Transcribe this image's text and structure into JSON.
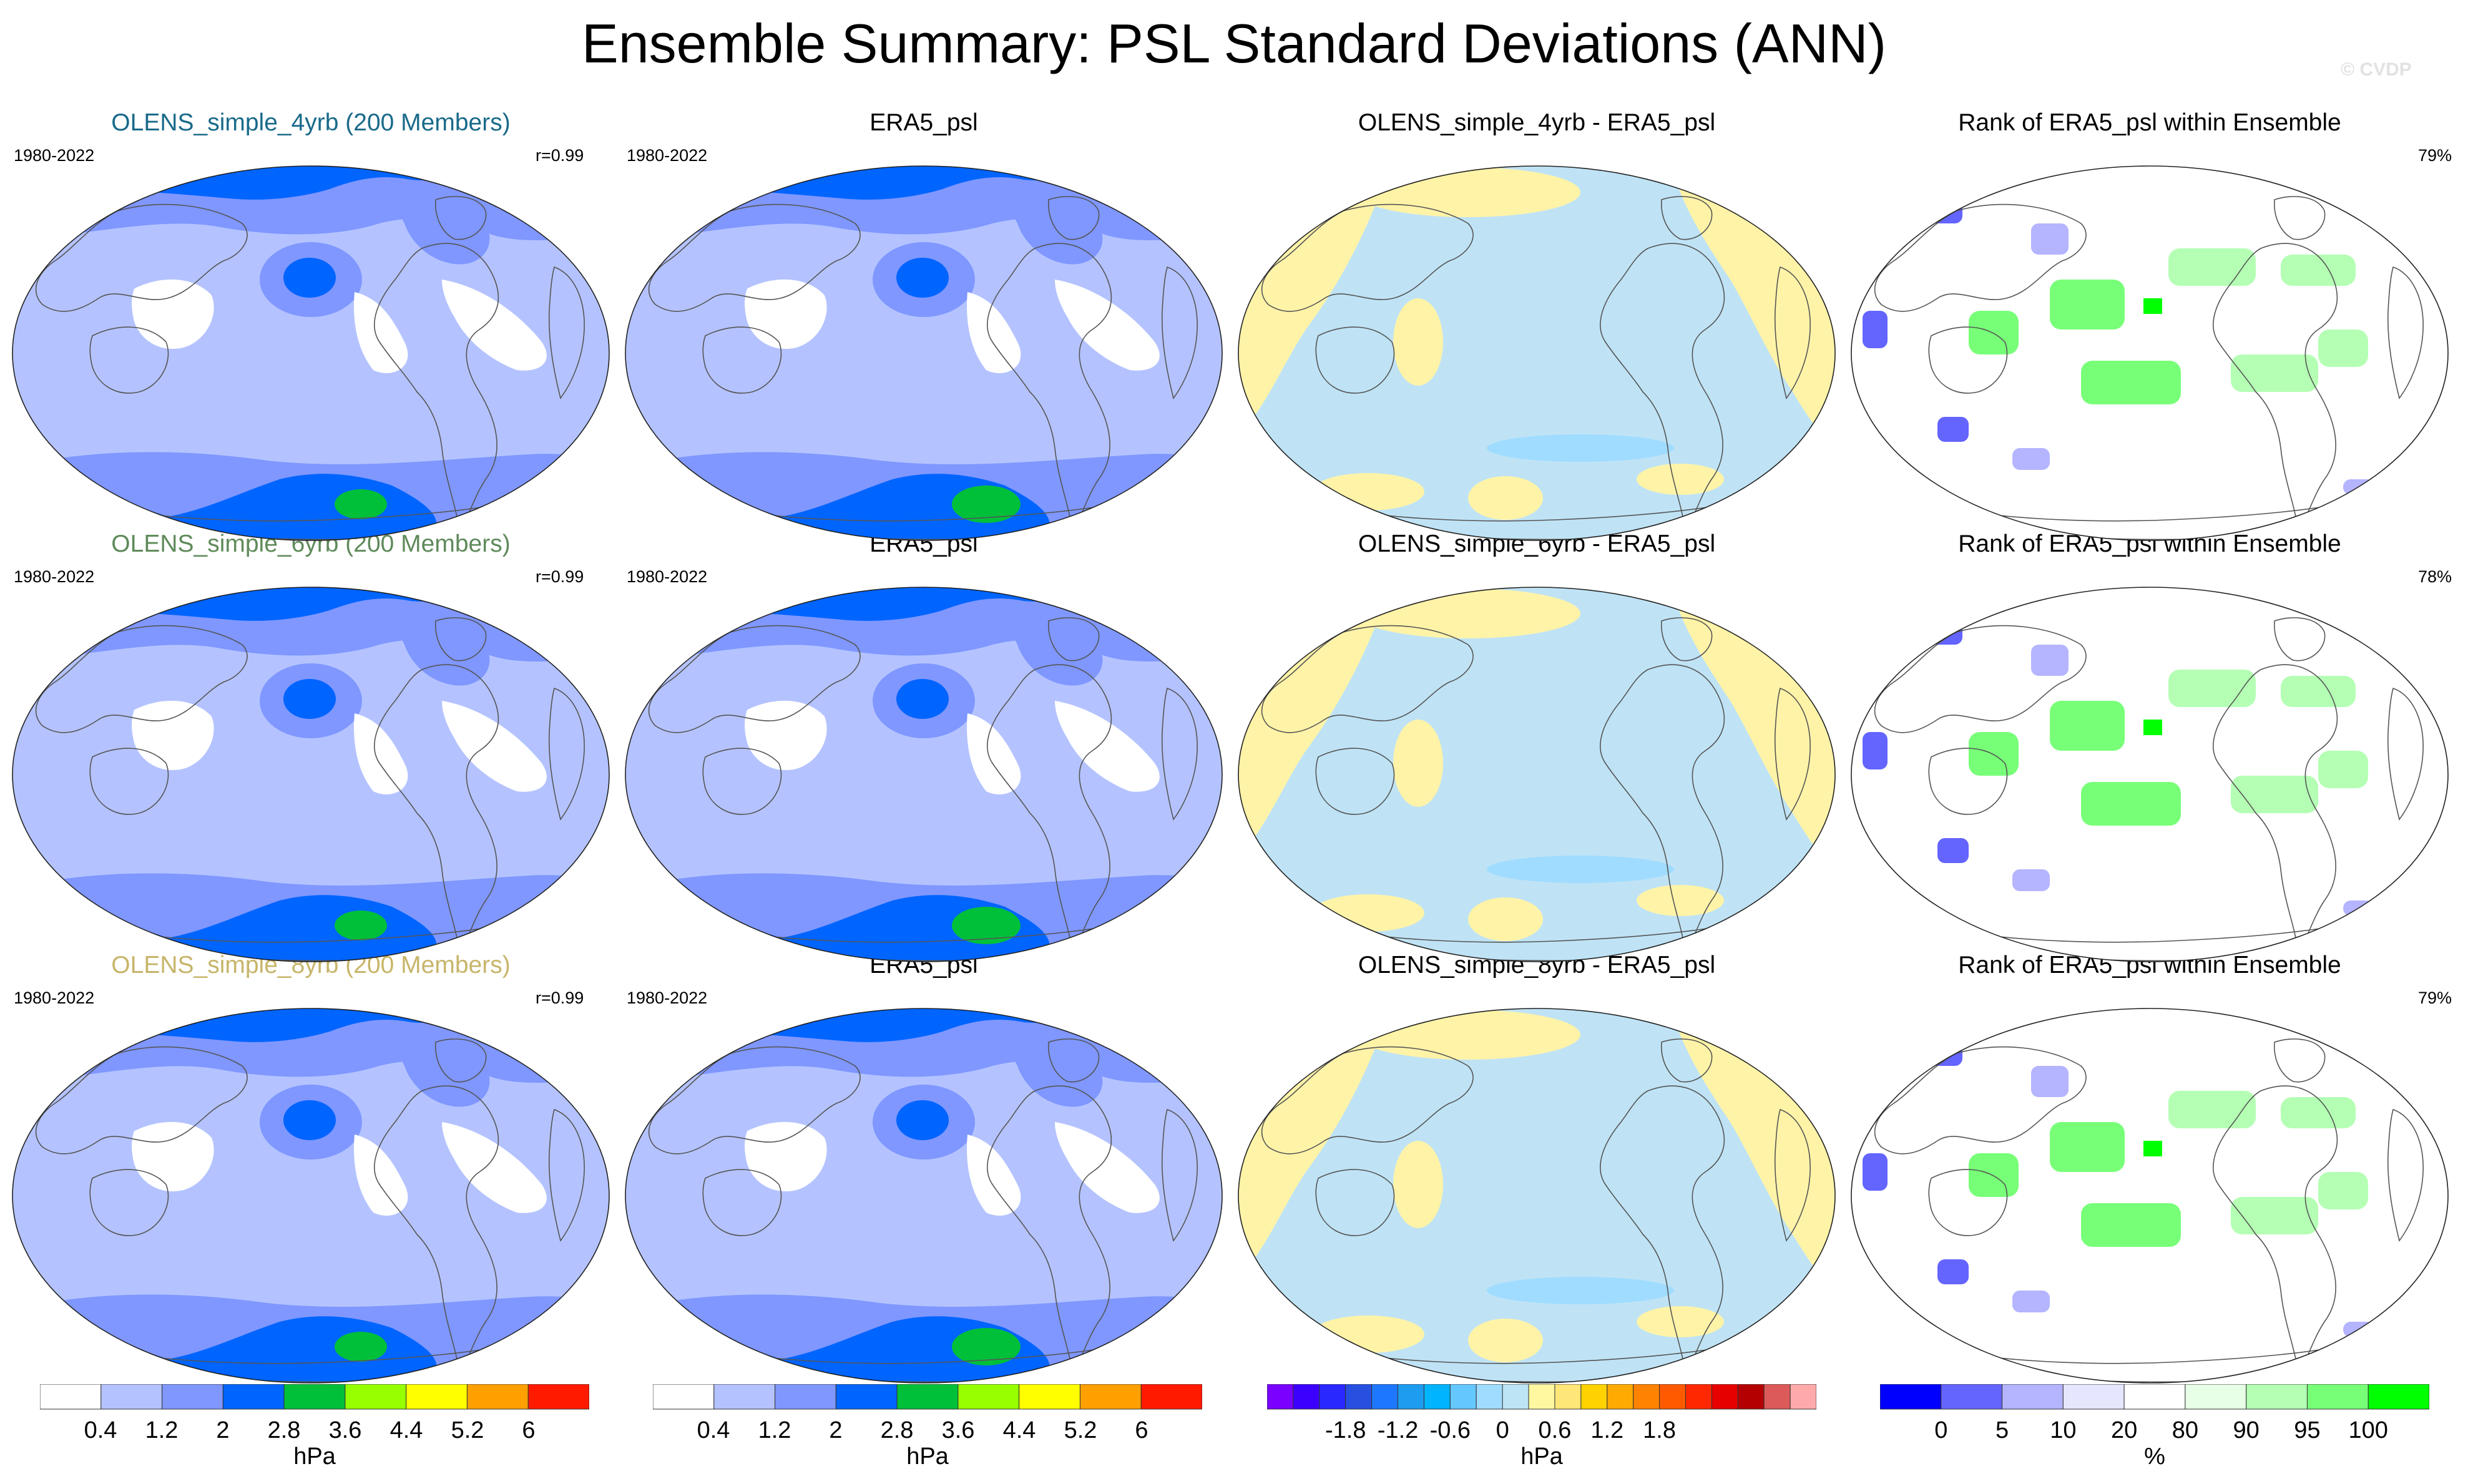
{
  "title": "Ensemble Summary: PSL Standard Deviations (ANN)",
  "watermark": "© CVDP",
  "colors": {
    "std": [
      "#ffffff",
      "#b4c3ff",
      "#7f97ff",
      "#0064ff",
      "#00c03a",
      "#96ff00",
      "#ffff00",
      "#ffa000",
      "#ff1a00"
    ],
    "diff": [
      "#7a00ff",
      "#3c00ff",
      "#2828ff",
      "#2850e0",
      "#1e78ff",
      "#1e9cf0",
      "#00b4ff",
      "#64c8ff",
      "#a0dcff",
      "#bce4f4",
      "#fff8a0",
      "#ffe678",
      "#ffd200",
      "#ffaa00",
      "#ff8200",
      "#ff5a00",
      "#ff2800",
      "#e60000",
      "#b40000",
      "#dc5a5a",
      "#ffaaaa"
    ],
    "rank": [
      "#0000ff",
      "#6464ff",
      "#b4b4ff",
      "#e6e6ff",
      "#ffffff",
      "#e6ffe6",
      "#b4ffb4",
      "#78ff78",
      "#00ff00"
    ],
    "ocean_diff": "#bfe3f5",
    "land_diff": "#fff3a8"
  },
  "rows": [
    {
      "ensemble_title": "OLENS_simple_4yrb (200 Members)",
      "ensemble_color": "#1a6a8a",
      "years": "1980-2022",
      "r": "r=0.99",
      "obs_title": "ERA5_psl",
      "obs_years": "1980-2022",
      "diff_title": "OLENS_simple_4yrb - ERA5_psl",
      "rank_title": "Rank of ERA5_psl within Ensemble",
      "rank_pct": "79%"
    },
    {
      "ensemble_title": "OLENS_simple_6yrb (200 Members)",
      "ensemble_color": "#5f8a5a",
      "years": "1980-2022",
      "r": "r=0.99",
      "obs_title": "ERA5_psl",
      "obs_years": "1980-2022",
      "diff_title": "OLENS_simple_6yrb - ERA5_psl",
      "rank_title": "Rank of ERA5_psl within Ensemble",
      "rank_pct": "78%"
    },
    {
      "ensemble_title": "OLENS_simple_8yrb (200 Members)",
      "ensemble_color": "#c7b56a",
      "years": "1980-2022",
      "r": "r=0.99",
      "obs_title": "ERA5_psl",
      "obs_years": "1980-2022",
      "diff_title": "OLENS_simple_8yrb - ERA5_psl",
      "rank_title": "Rank of ERA5_psl within Ensemble",
      "rank_pct": "79%"
    }
  ],
  "colorbars": [
    {
      "ticks": [
        "0.4",
        "1.2",
        "2",
        "2.8",
        "3.6",
        "4.4",
        "5.2",
        "6"
      ],
      "unit": "hPa"
    },
    {
      "ticks": [
        "0.4",
        "1.2",
        "2",
        "2.8",
        "3.6",
        "4.4",
        "5.2",
        "6"
      ],
      "unit": "hPa"
    },
    {
      "ticks": [
        "-1.8",
        "-1.2",
        "-0.6",
        "0",
        "0.6",
        "1.2",
        "1.8"
      ],
      "unit": "hPa"
    },
    {
      "ticks": [
        "0",
        "5",
        "10",
        "20",
        "80",
        "90",
        "95",
        "100"
      ],
      "unit": "%"
    }
  ],
  "chart_data": {
    "type": "heatmap",
    "title": "Ensemble Summary: PSL Standard Deviations (ANN)",
    "variable": "PSL",
    "season": "ANN",
    "period": "1980-2022",
    "std_levels_hPa": [
      0.4,
      1.2,
      2,
      2.8,
      3.6,
      4.4,
      5.2,
      6
    ],
    "diff_levels_hPa": [
      -1.8,
      -1.2,
      -0.6,
      0,
      0.6,
      1.2,
      1.8
    ],
    "rank_levels_pct": [
      0,
      5,
      10,
      20,
      80,
      90,
      95,
      100
    ],
    "panels": [
      {
        "row": 1,
        "ensemble": "OLENS_simple_4yrb",
        "members": 200,
        "pattern_correlation": 0.99,
        "rank_within_80_20_pct": 79
      },
      {
        "row": 2,
        "ensemble": "OLENS_simple_6yrb",
        "members": 200,
        "pattern_correlation": 0.99,
        "rank_within_80_20_pct": 78
      },
      {
        "row": 3,
        "ensemble": "OLENS_simple_8yrb",
        "members": 200,
        "pattern_correlation": 0.99,
        "rank_within_80_20_pct": 79
      }
    ]
  }
}
